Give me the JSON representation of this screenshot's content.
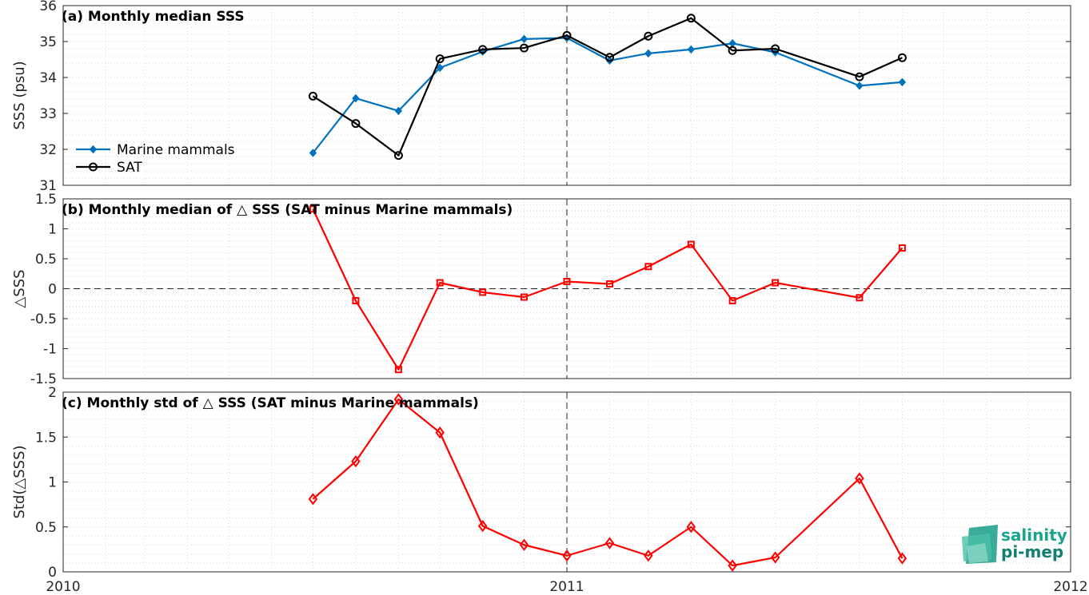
{
  "chart_data": [
    {
      "type": "line",
      "title": "(a) Monthly median SSS",
      "ylabel": "SSS (psu)",
      "ylim": [
        31,
        36
      ],
      "yticks": [
        31,
        32,
        33,
        34,
        35,
        36
      ],
      "xlim": [
        "2010-01-01",
        "2012-01-01"
      ],
      "grid": true,
      "legend_position": "bottom-left",
      "series": [
        {
          "name": "Marine mammals",
          "color": "#0072bd",
          "marker": "diamond-filled",
          "points": [
            [
              "2010-07-01",
              31.9
            ],
            [
              "2010-08-01",
              33.42
            ],
            [
              "2010-09-01",
              33.07
            ],
            [
              "2010-10-01",
              34.27
            ],
            [
              "2010-11-01",
              34.72
            ],
            [
              "2010-12-01",
              35.07
            ],
            [
              "2011-01-01",
              35.1
            ],
            [
              "2011-02-01",
              34.47
            ],
            [
              "2011-03-01",
              34.67
            ],
            [
              "2011-04-01",
              34.78
            ],
            [
              "2011-05-01",
              34.95
            ],
            [
              "2011-06-01",
              34.7
            ],
            [
              "2011-08-01",
              33.77
            ],
            [
              "2011-09-01",
              33.87
            ]
          ]
        },
        {
          "name": "SAT",
          "color": "#000000",
          "marker": "circle-open",
          "points": [
            [
              "2010-07-01",
              33.48
            ],
            [
              "2010-08-01",
              32.72
            ],
            [
              "2010-09-01",
              31.83
            ],
            [
              "2010-10-01",
              34.52
            ],
            [
              "2010-11-01",
              34.78
            ],
            [
              "2010-12-01",
              34.82
            ],
            [
              "2011-01-01",
              35.17
            ],
            [
              "2011-02-01",
              34.56
            ],
            [
              "2011-03-01",
              35.15
            ],
            [
              "2011-04-01",
              35.65
            ],
            [
              "2011-05-01",
              34.75
            ],
            [
              "2011-06-01",
              34.8
            ],
            [
              "2011-08-01",
              34.02
            ],
            [
              "2011-09-01",
              34.55
            ]
          ]
        }
      ]
    },
    {
      "type": "line",
      "title": "(b) Monthly median of △ SSS (SAT minus Marine mammals)",
      "ylabel": "△SSS",
      "ylim": [
        -1.5,
        1.5
      ],
      "yticks": [
        -1.5,
        -1,
        -0.5,
        0,
        0.5,
        1,
        1.5
      ],
      "xlim": [
        "2010-01-01",
        "2012-01-01"
      ],
      "grid": true,
      "zero_line": true,
      "series": [
        {
          "color": "#ff0000",
          "marker": "square-open",
          "points": [
            [
              "2010-07-01",
              1.33
            ],
            [
              "2010-08-01",
              -0.2
            ],
            [
              "2010-09-01",
              -1.35
            ],
            [
              "2010-10-01",
              0.1
            ],
            [
              "2010-11-01",
              -0.06
            ],
            [
              "2010-12-01",
              -0.14
            ],
            [
              "2011-01-01",
              0.12
            ],
            [
              "2011-02-01",
              0.08
            ],
            [
              "2011-03-01",
              0.37
            ],
            [
              "2011-04-01",
              0.74
            ],
            [
              "2011-05-01",
              -0.2
            ],
            [
              "2011-06-01",
              0.1
            ],
            [
              "2011-08-01",
              -0.15
            ],
            [
              "2011-09-01",
              0.68
            ]
          ]
        }
      ]
    },
    {
      "type": "line",
      "title": "(c) Monthly std of △ SSS (SAT minus Marine mammals)",
      "ylabel": "Std(△SSS)",
      "ylim": [
        0,
        2
      ],
      "yticks": [
        0,
        0.5,
        1,
        1.5,
        2
      ],
      "xlim": [
        "2010-01-01",
        "2012-01-01"
      ],
      "xticks": [
        "2010",
        "2011",
        "2012"
      ],
      "grid": true,
      "series": [
        {
          "color": "#ff0000",
          "marker": "diamond-open",
          "points": [
            [
              "2010-07-01",
              0.81
            ],
            [
              "2010-08-01",
              1.23
            ],
            [
              "2010-09-01",
              1.92
            ],
            [
              "2010-10-01",
              1.55
            ],
            [
              "2010-11-01",
              0.51
            ],
            [
              "2010-12-01",
              0.3
            ],
            [
              "2011-01-01",
              0.18
            ],
            [
              "2011-02-01",
              0.32
            ],
            [
              "2011-03-01",
              0.18
            ],
            [
              "2011-04-01",
              0.5
            ],
            [
              "2011-05-01",
              0.07
            ],
            [
              "2011-06-01",
              0.16
            ],
            [
              "2011-08-01",
              1.04
            ],
            [
              "2011-09-01",
              0.15
            ]
          ]
        }
      ]
    }
  ],
  "logo": {
    "line1": "salinity",
    "line2": "pi-mep"
  }
}
